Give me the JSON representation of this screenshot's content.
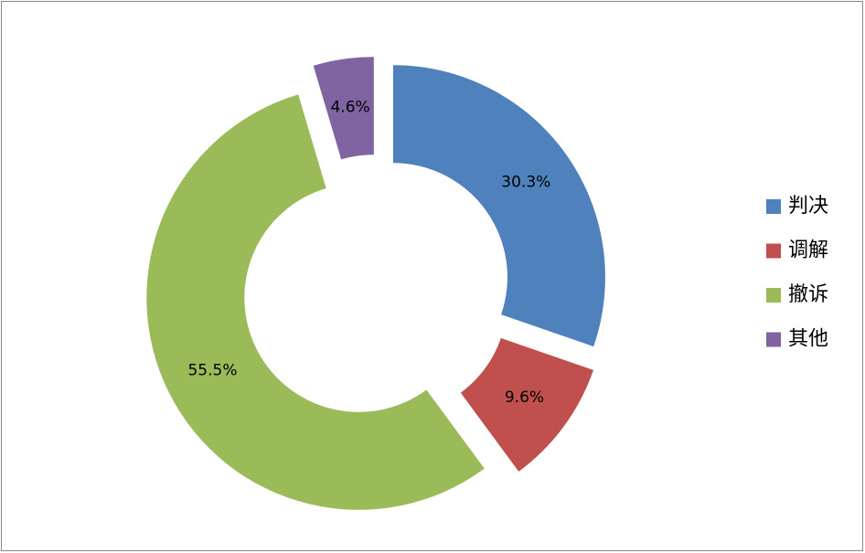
{
  "chart_data": {
    "type": "donut",
    "categories": [
      "判决",
      "调解",
      "撤诉",
      "其他"
    ],
    "values": [
      30.3,
      9.6,
      55.5,
      4.6
    ],
    "value_labels": [
      "30.3%",
      "9.6%",
      "55.5%",
      "4.6%"
    ],
    "colors": [
      "#4f81bd",
      "#c0504d",
      "#9bbb59",
      "#8064a2"
    ],
    "legend": "right"
  }
}
